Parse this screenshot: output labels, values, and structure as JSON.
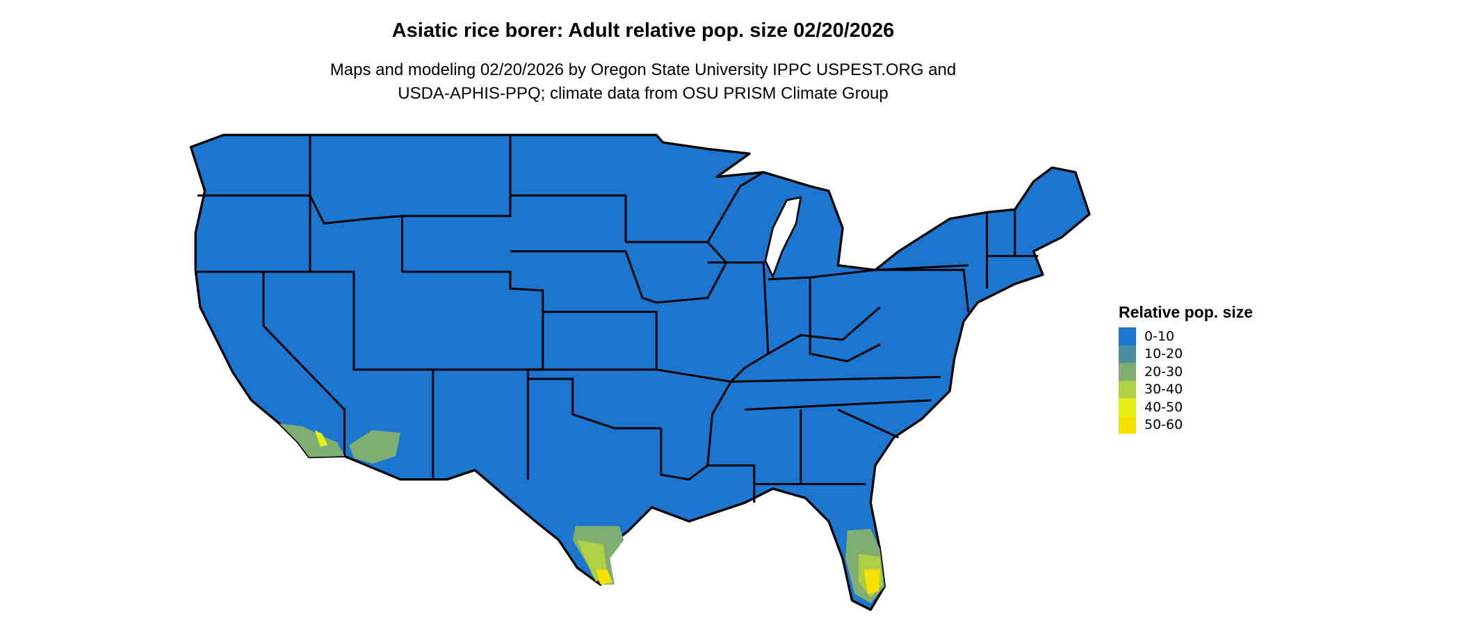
{
  "title": "Asiatic rice borer: Adult relative pop. size 02/20/2026",
  "subtitle_lines": [
    "Maps and modeling 02/20/2026 by Oregon State University IPPC USPEST.ORG and",
    "USDA-APHIS-PPQ; climate data from OSU PRISM Climate Group"
  ],
  "legend": {
    "title": "Relative pop. size",
    "items": [
      {
        "label": "0-10",
        "color": "#1C75CF"
      },
      {
        "label": "10-20",
        "color": "#4A8F9E"
      },
      {
        "label": "20-30",
        "color": "#7EAE72"
      },
      {
        "label": "30-40",
        "color": "#B0CF45"
      },
      {
        "label": "40-50",
        "color": "#E5EE17"
      },
      {
        "label": "50-60",
        "color": "#F8E000"
      }
    ]
  },
  "map": {
    "region": "Contiguous United States",
    "base_color": "#1C75CF",
    "border_color": "#000000"
  }
}
